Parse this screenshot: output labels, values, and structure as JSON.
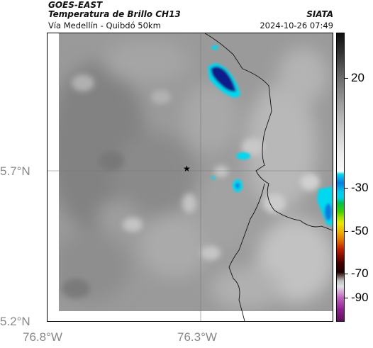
{
  "header": {
    "satellite": "GOES-EAST",
    "product": "Temperatura de Brillo CH13",
    "organization": "SIATA",
    "route": "Vía Medellín - Quibdó 50km",
    "datetime": "2024-10-26 07:49"
  },
  "axes": {
    "lat_labels": [
      "5.7°N",
      "5.2°N"
    ],
    "lon_labels": [
      "76.8°W",
      "76.3°W"
    ]
  },
  "colorbar": {
    "labels": [
      "20",
      "-30",
      "-50",
      "-70",
      "-90"
    ],
    "values": [
      20,
      -30,
      -50,
      -70,
      -90
    ]
  },
  "map": {
    "marker_symbol": "★",
    "background_gray": "#9a9a9a",
    "cold_cloud_color": "#0a1f8a",
    "cyan_color": "#00d8f0",
    "border_color": "#111111"
  }
}
